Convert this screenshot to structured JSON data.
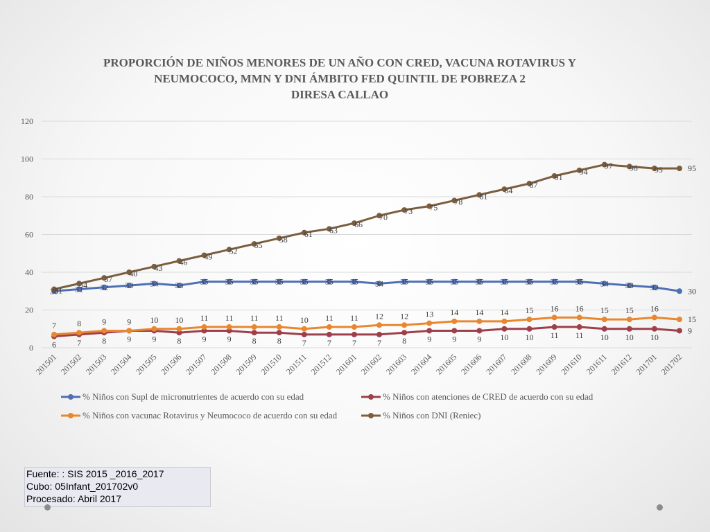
{
  "chart_data": {
    "type": "line",
    "title": [
      "PROPORCIÓN DE NIÑOS MENORES DE UN AÑO CON CRED, VACUNA ROTAVIRUS Y",
      "NEUMOCOCO, MMN Y DNI  ÁMBITO FED QUINTIL  DE POBREZA 2",
      "DIRESA CALLAO"
    ],
    "xlabel": "",
    "ylabel": "",
    "ylim": [
      0,
      120
    ],
    "yticks": [
      "0",
      "20",
      "40",
      "60",
      "80",
      "100",
      "120"
    ],
    "grid": true,
    "legend_position": "bottom",
    "categories": [
      "201501",
      "201502",
      "201503",
      "201504",
      "201505",
      "201506",
      "201507",
      "201508",
      "201509",
      "201510",
      "201511",
      "201512",
      "201601",
      "201602",
      "201603",
      "201604",
      "201605",
      "201606",
      "201607",
      "201608",
      "201609",
      "201610",
      "201611",
      "201612",
      "201701",
      "201702"
    ],
    "series": [
      {
        "name": "% Niños con Supl de micronutrientes de acuerdo con su edad",
        "color": "#4f6fb4",
        "values": [
          30,
          31,
          32,
          33,
          34,
          33,
          35,
          35,
          35,
          35,
          35,
          35,
          35,
          34,
          35,
          35,
          35,
          35,
          35,
          35,
          35,
          35,
          34,
          33,
          32,
          30
        ],
        "labels": [
          "30",
          "31",
          "32",
          "33",
          "34",
          "33",
          "35",
          "35",
          "35",
          "35",
          "35",
          "35",
          "35",
          "34",
          "35",
          "35",
          "35",
          "35",
          "35",
          "35",
          "35",
          "35",
          "34",
          "33",
          "32",
          "30"
        ]
      },
      {
        "name": "% Niños  con atenciones de CRED de acuerdo con su edad",
        "color": "#9e3f4b",
        "values": [
          6,
          7,
          8,
          9,
          9,
          8,
          9,
          9,
          8,
          8,
          7,
          7,
          7,
          7,
          8,
          9,
          9,
          9,
          10,
          10,
          11,
          11,
          10,
          10,
          10,
          9
        ],
        "labels": [
          "6",
          "7",
          "8",
          "9",
          "9",
          "8",
          "9",
          "9",
          "8",
          "8",
          "7",
          "7",
          "7",
          "7",
          "8",
          "9",
          "9",
          "9",
          "10",
          "10",
          "11",
          "11",
          "10",
          "10",
          "10",
          "9"
        ]
      },
      {
        "name": "% Niños con vacunac Rotavirus y Neumococo de acuerdo con su edad",
        "color": "#e8872e",
        "values": [
          7,
          8,
          9,
          9,
          10,
          10,
          11,
          11,
          11,
          11,
          10,
          11,
          11,
          12,
          12,
          13,
          14,
          14,
          14,
          15,
          16,
          16,
          15,
          15,
          16,
          15
        ],
        "labels": [
          "7",
          "8",
          "9",
          "9",
          "10",
          "10",
          "11",
          "11",
          "11",
          "11",
          "10",
          "11",
          "11",
          "12",
          "12",
          "13",
          "14",
          "14",
          "14",
          "15",
          "16",
          "16",
          "15",
          "15",
          "16",
          "15"
        ]
      },
      {
        "name": "% Niños con DNI (Reniec)",
        "color": "#7b5e3f",
        "values": [
          31,
          34,
          37,
          40,
          43,
          46,
          49,
          52,
          55,
          58,
          61,
          63,
          66,
          70,
          73,
          75,
          78,
          81,
          84,
          87,
          91,
          94,
          97,
          96,
          95,
          95
        ],
        "labels": [
          "31",
          "34",
          "37",
          "40",
          "43",
          "46",
          "49",
          "52",
          "55",
          "58",
          "61",
          "63",
          "66",
          "70",
          "73",
          "75",
          "78",
          "81",
          "84",
          "87",
          "91",
          "94",
          "97",
          "96",
          "95",
          "95"
        ]
      }
    ]
  },
  "source": {
    "line1": "Fuente: : SIS 2015 _2016_2017",
    "line2": "Cubo:  05Infant_201702v0",
    "line3": "Procesado: Abril 2017"
  }
}
